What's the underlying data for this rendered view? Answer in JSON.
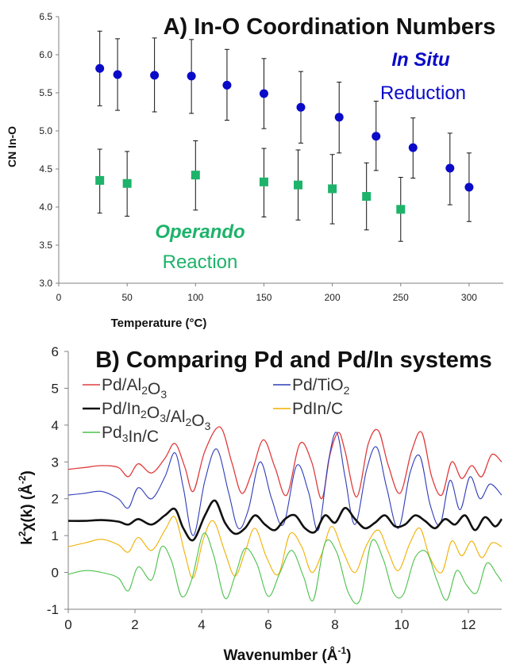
{
  "chart_data": [
    {
      "type": "scatter",
      "title": "A) In-O Coordination Numbers",
      "xlabel": "Temperature (°C)",
      "ylabel": "CN In-O",
      "xlim": [
        0,
        325
      ],
      "ylim": [
        3.0,
        6.5
      ],
      "x_ticks": [
        "0",
        "50",
        "100",
        "150",
        "200",
        "250",
        "300"
      ],
      "y_ticks": [
        "3.0",
        "3.5",
        "4.0",
        "4.5",
        "5.0",
        "5.5",
        "6.0",
        "6.5"
      ],
      "grid": false,
      "series": [
        {
          "name": "In Situ Reduction",
          "label_line1": "In Situ",
          "label_line2": "Reduction",
          "color": "#0a0ac8",
          "marker": "circle",
          "points": [
            {
              "x": 30,
              "y": 5.82,
              "err_lo": 5.33,
              "err_hi": 6.31
            },
            {
              "x": 43,
              "y": 5.74,
              "err_lo": 5.27,
              "err_hi": 6.21
            },
            {
              "x": 70,
              "y": 5.73,
              "err_lo": 5.25,
              "err_hi": 6.22
            },
            {
              "x": 97,
              "y": 5.72,
              "err_lo": 5.23,
              "err_hi": 6.2
            },
            {
              "x": 123,
              "y": 5.6,
              "err_lo": 5.14,
              "err_hi": 6.07
            },
            {
              "x": 150,
              "y": 5.49,
              "err_lo": 5.03,
              "err_hi": 5.95
            },
            {
              "x": 177,
              "y": 5.31,
              "err_lo": 4.84,
              "err_hi": 5.78
            },
            {
              "x": 205,
              "y": 5.18,
              "err_lo": 4.71,
              "err_hi": 5.64
            },
            {
              "x": 232,
              "y": 4.93,
              "err_lo": 4.48,
              "err_hi": 5.39
            },
            {
              "x": 259,
              "y": 4.78,
              "err_lo": 4.38,
              "err_hi": 5.17
            },
            {
              "x": 286,
              "y": 4.51,
              "err_lo": 4.03,
              "err_hi": 4.97
            },
            {
              "x": 300,
              "y": 4.26,
              "err_lo": 3.81,
              "err_hi": 4.71
            }
          ]
        },
        {
          "name": "Operando Reaction",
          "label_line1": "Operando",
          "label_line2": "Reaction",
          "color": "#1db36a",
          "marker": "square",
          "points": [
            {
              "x": 30,
              "y": 4.35,
              "err_lo": 3.92,
              "err_hi": 4.76
            },
            {
              "x": 50,
              "y": 4.31,
              "err_lo": 3.88,
              "err_hi": 4.73
            },
            {
              "x": 100,
              "y": 4.42,
              "err_lo": 3.96,
              "err_hi": 4.87
            },
            {
              "x": 150,
              "y": 4.33,
              "err_lo": 3.87,
              "err_hi": 4.77
            },
            {
              "x": 175,
              "y": 4.29,
              "err_lo": 3.83,
              "err_hi": 4.75
            },
            {
              "x": 200,
              "y": 4.24,
              "err_lo": 3.78,
              "err_hi": 4.69
            },
            {
              "x": 225,
              "y": 4.14,
              "err_lo": 3.7,
              "err_hi": 4.58
            },
            {
              "x": 250,
              "y": 3.97,
              "err_lo": 3.55,
              "err_hi": 4.39
            }
          ]
        }
      ]
    },
    {
      "type": "line",
      "title": "B) Comparing Pd and Pd/In systems",
      "xlabel": "Wavenumber (Å-1)",
      "xlabel_main": "Wavenumber (Å",
      "xlabel_sup": "-1",
      "xlabel_close": ")",
      "ylabel": "k2χ(k) (Å-2)",
      "xlim": [
        0,
        13
      ],
      "ylim": [
        -1,
        6
      ],
      "x_ticks": [
        "0",
        "2",
        "4",
        "6",
        "8",
        "10",
        "12"
      ],
      "y_ticks": [
        "-1",
        "0",
        "1",
        "2",
        "3",
        "4",
        "5",
        "6"
      ],
      "grid": false,
      "legend_position": "top",
      "series": [
        {
          "name": "Pd/Al2O3",
          "color": "#e03c3c",
          "width": 1.3,
          "x": [
            0,
            0.5,
            1,
            1.5,
            1.8,
            2.1,
            2.5,
            2.9,
            3.2,
            3.5,
            3.75,
            4.1,
            4.55,
            4.9,
            5.2,
            5.5,
            5.85,
            6.2,
            6.55,
            6.95,
            7.3,
            7.6,
            7.85,
            8.1,
            8.3,
            8.65,
            9.0,
            9.3,
            9.6,
            9.95,
            10.3,
            10.6,
            10.9,
            11.2,
            11.5,
            11.8,
            12.1,
            12.4,
            12.7,
            13
          ],
          "y": [
            2.8,
            2.85,
            2.9,
            2.85,
            2.6,
            2.95,
            2.7,
            3.1,
            3.5,
            2.85,
            2.2,
            3.3,
            3.95,
            3.0,
            2.15,
            2.7,
            3.6,
            2.85,
            2.1,
            3.5,
            3.0,
            2.0,
            3.2,
            3.8,
            3.3,
            2.05,
            3.5,
            3.85,
            2.9,
            2.15,
            3.3,
            3.8,
            2.6,
            2.1,
            3.0,
            2.55,
            2.9,
            2.6,
            3.2,
            3.0
          ]
        },
        {
          "name": "Pd/TiO2",
          "color": "#2e3cb8",
          "width": 1.1,
          "x": [
            0,
            0.5,
            1,
            1.5,
            1.8,
            2.1,
            2.5,
            2.9,
            3.2,
            3.45,
            3.75,
            4.1,
            4.45,
            4.8,
            5.1,
            5.4,
            5.75,
            6.1,
            6.45,
            6.85,
            7.2,
            7.5,
            7.8,
            8.05,
            8.3,
            8.6,
            8.95,
            9.25,
            9.55,
            9.9,
            10.25,
            10.55,
            10.85,
            11.15,
            11.45,
            11.75,
            12.05,
            12.35,
            12.65,
            13
          ],
          "y": [
            2.1,
            2.15,
            2.2,
            2.0,
            1.75,
            2.3,
            2.0,
            2.6,
            3.25,
            2.3,
            1.0,
            2.5,
            3.35,
            2.2,
            1.2,
            1.7,
            3.0,
            2.0,
            1.3,
            2.9,
            2.2,
            1.15,
            3.0,
            3.8,
            2.6,
            1.3,
            2.8,
            3.4,
            2.3,
            1.2,
            2.7,
            3.15,
            1.85,
            1.3,
            2.5,
            1.7,
            2.6,
            2.0,
            2.4,
            2.1
          ]
        },
        {
          "name": "Pd/In2O3/Al2O3",
          "color": "#111111",
          "width": 2.6,
          "x": [
            0,
            0.5,
            1,
            1.5,
            1.8,
            2.1,
            2.5,
            2.9,
            3.2,
            3.45,
            3.75,
            4.1,
            4.4,
            4.7,
            5.0,
            5.3,
            5.6,
            5.9,
            6.2,
            6.5,
            6.8,
            7.1,
            7.4,
            7.7,
            8.0,
            8.3,
            8.6,
            8.9,
            9.2,
            9.5,
            9.8,
            10.1,
            10.4,
            10.7,
            11.0,
            11.3,
            11.6,
            11.9,
            12.2,
            12.5,
            12.8,
            13
          ],
          "y": [
            1.4,
            1.4,
            1.42,
            1.38,
            1.3,
            1.45,
            1.3,
            1.55,
            1.72,
            1.2,
            0.88,
            1.55,
            1.95,
            1.35,
            1.05,
            1.2,
            1.55,
            1.3,
            1.15,
            1.45,
            1.55,
            1.2,
            1.1,
            1.55,
            1.35,
            1.75,
            1.45,
            1.2,
            1.35,
            1.55,
            1.25,
            1.3,
            1.55,
            1.4,
            1.2,
            1.45,
            1.3,
            1.55,
            1.15,
            1.5,
            1.25,
            1.45
          ]
        },
        {
          "name": "PdIn/C",
          "color": "#f0b000",
          "width": 1.1,
          "x": [
            0,
            0.5,
            1,
            1.5,
            1.8,
            2.1,
            2.5,
            2.9,
            3.2,
            3.5,
            3.75,
            4.05,
            4.35,
            4.7,
            5.0,
            5.3,
            5.6,
            5.95,
            6.3,
            6.65,
            7.0,
            7.3,
            7.6,
            7.9,
            8.25,
            8.6,
            8.95,
            9.3,
            9.6,
            9.9,
            10.25,
            10.55,
            10.85,
            11.2,
            11.5,
            11.8,
            12.1,
            12.4,
            12.7,
            13
          ],
          "y": [
            0.7,
            0.8,
            0.9,
            0.75,
            0.55,
            0.95,
            0.6,
            1.15,
            1.5,
            0.5,
            -0.15,
            0.9,
            1.4,
            0.55,
            -0.1,
            0.55,
            1.2,
            0.4,
            -0.05,
            1.05,
            0.7,
            0.0,
            0.5,
            1.25,
            0.55,
            0.0,
            0.75,
            1.15,
            0.55,
            0.05,
            0.8,
            1.2,
            0.4,
            0.0,
            0.85,
            0.45,
            0.85,
            0.4,
            0.8,
            0.7
          ]
        },
        {
          "name": "Pd3In/C",
          "color": "#4cc04c",
          "width": 1.1,
          "x": [
            0,
            0.5,
            1,
            1.5,
            1.8,
            2.1,
            2.5,
            2.8,
            3.1,
            3.4,
            3.7,
            4.05,
            4.35,
            4.7,
            5.0,
            5.3,
            5.65,
            6.0,
            6.35,
            6.7,
            7.05,
            7.35,
            7.7,
            8.05,
            8.4,
            8.75,
            9.1,
            9.45,
            9.75,
            10.05,
            10.4,
            10.75,
            11.05,
            11.35,
            11.65,
            11.95,
            12.25,
            12.55,
            12.85,
            13
          ],
          "y": [
            -0.05,
            0.05,
            0.0,
            -0.15,
            -0.5,
            0.15,
            -0.2,
            0.7,
            0.3,
            -0.65,
            -0.2,
            1.05,
            0.5,
            -0.7,
            -0.1,
            0.65,
            0.25,
            -0.65,
            0.0,
            0.6,
            -0.1,
            -0.75,
            0.8,
            0.55,
            -0.55,
            -0.75,
            0.85,
            0.35,
            -0.55,
            -0.6,
            0.4,
            0.55,
            -0.2,
            -0.75,
            0.05,
            -0.35,
            -0.55,
            0.25,
            -0.05,
            -0.25
          ]
        }
      ]
    }
  ]
}
